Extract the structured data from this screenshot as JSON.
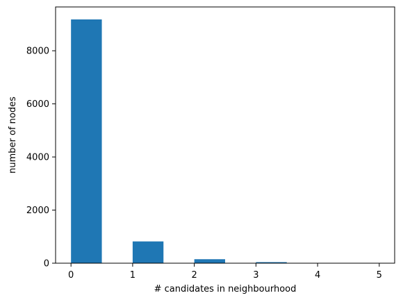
{
  "chart_data": {
    "type": "bar",
    "title": "",
    "xlabel": "# candidates in neighbourhood",
    "ylabel": "number of nodes",
    "xlim": [
      -0.25,
      5.25
    ],
    "ylim": [
      0,
      9650
    ],
    "xticks": [
      0,
      1,
      2,
      3,
      4,
      5
    ],
    "yticks": [
      0,
      2000,
      4000,
      6000,
      8000
    ],
    "bins": [
      {
        "start": 0.0,
        "end": 0.5,
        "value": 9180
      },
      {
        "start": 0.5,
        "end": 1.0,
        "value": 0
      },
      {
        "start": 1.0,
        "end": 1.5,
        "value": 820
      },
      {
        "start": 1.5,
        "end": 2.0,
        "value": 0
      },
      {
        "start": 2.0,
        "end": 2.5,
        "value": 150
      },
      {
        "start": 2.5,
        "end": 3.0,
        "value": 0
      },
      {
        "start": 3.0,
        "end": 3.5,
        "value": 40
      },
      {
        "start": 3.5,
        "end": 4.0,
        "value": 0
      },
      {
        "start": 4.0,
        "end": 4.5,
        "value": 10
      },
      {
        "start": 4.5,
        "end": 5.0,
        "value": 0
      }
    ],
    "bar_color": "#1f77b4",
    "grid": false
  }
}
